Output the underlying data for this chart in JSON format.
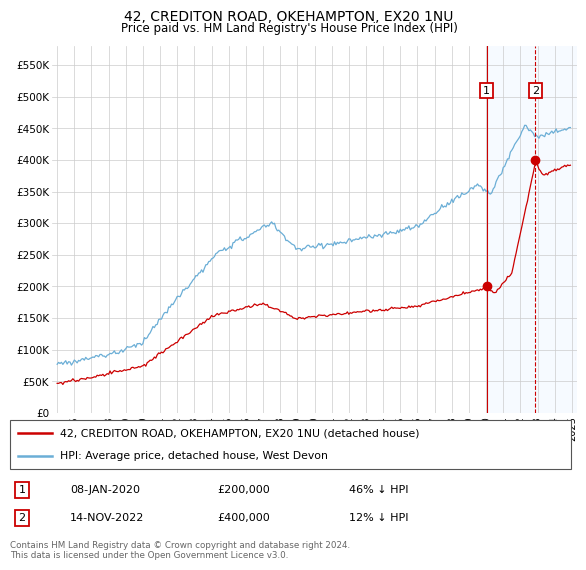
{
  "title": "42, CREDITON ROAD, OKEHAMPTON, EX20 1NU",
  "subtitle": "Price paid vs. HM Land Registry's House Price Index (HPI)",
  "legend_line1": "42, CREDITON ROAD, OKEHAMPTON, EX20 1NU (detached house)",
  "legend_line2": "HPI: Average price, detached house, West Devon",
  "annotation1": {
    "label": "1",
    "date": "08-JAN-2020",
    "price": "£200,000",
    "hpi": "46% ↓ HPI",
    "x_year": 2020.03,
    "y": 200000
  },
  "annotation2": {
    "label": "2",
    "date": "14-NOV-2022",
    "price": "£400,000",
    "hpi": "12% ↓ HPI",
    "x_year": 2022.88,
    "y": 400000
  },
  "footer": "Contains HM Land Registry data © Crown copyright and database right 2024.\nThis data is licensed under the Open Government Licence v3.0.",
  "hpi_color": "#6baed6",
  "price_color": "#cc0000",
  "vline1_color": "#cc0000",
  "vline2_color": "#cc0000",
  "shade_color": "#ddeeff",
  "ylim": [
    0,
    580000
  ],
  "yticks": [
    0,
    50000,
    100000,
    150000,
    200000,
    250000,
    300000,
    350000,
    400000,
    450000,
    500000,
    550000
  ],
  "ytick_labels": [
    "£0",
    "£50K",
    "£100K",
    "£150K",
    "£200K",
    "£250K",
    "£300K",
    "£350K",
    "£400K",
    "£450K",
    "£500K",
    "£550K"
  ],
  "xlim_start": 1994.7,
  "xlim_end": 2025.3
}
